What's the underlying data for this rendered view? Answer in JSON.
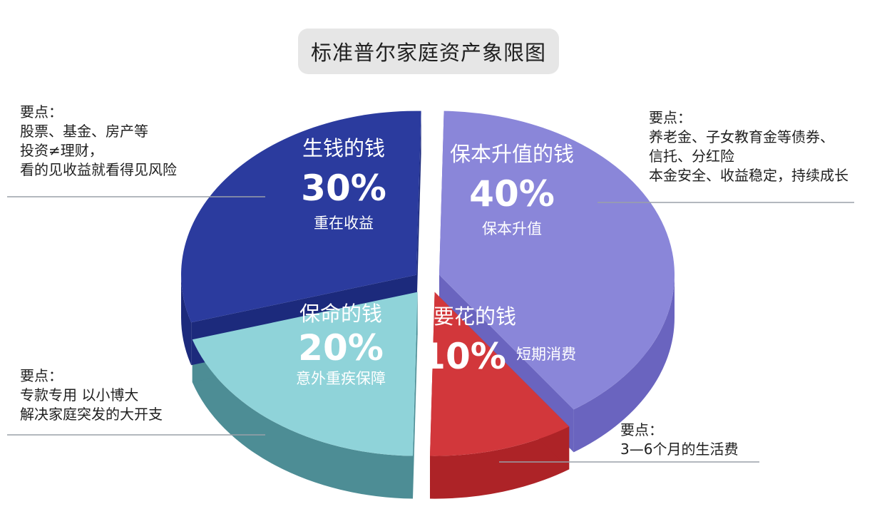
{
  "chart_data": {
    "type": "pie",
    "title": "标准普尔家庭资产象限图",
    "slices": [
      {
        "name": "生钱的钱",
        "value": 30,
        "percent": "30%",
        "note": "重在收益",
        "color": "#2b3b9e",
        "side_color": "#1c2a7c"
      },
      {
        "name": "保本升值的钱",
        "value": 40,
        "percent": "40%",
        "note": "保本升值",
        "color": "#8a86d9",
        "side_color": "#6a64bf"
      },
      {
        "name": "要花的钱",
        "value": 10,
        "percent": "10%",
        "note": "短期消费",
        "color": "#d2373b",
        "side_color": "#ad2327"
      },
      {
        "name": "保命的钱",
        "value": 20,
        "percent": "20%",
        "note": "意外重疾保障",
        "color": "#8fd3d9",
        "side_color": "#4d8d95"
      }
    ]
  },
  "annotations": {
    "top_left": {
      "heading": "要点：",
      "lines": [
        "股票、基金、房产等",
        "投资≠理财，",
        "看的见收益就看得见风险"
      ]
    },
    "top_right": {
      "heading": "要点：",
      "lines": [
        "养老金、子女教育金等债券、",
        "信托、分红险",
        "本金安全、收益稳定，持续成长"
      ]
    },
    "bottom_left": {
      "heading": "要点：",
      "lines": [
        "专款专用  以小博大",
        "解决家庭突发的大开支"
      ]
    },
    "bottom_right": {
      "heading": "要点：",
      "lines": [
        "3—6个月的生活费"
      ]
    }
  }
}
